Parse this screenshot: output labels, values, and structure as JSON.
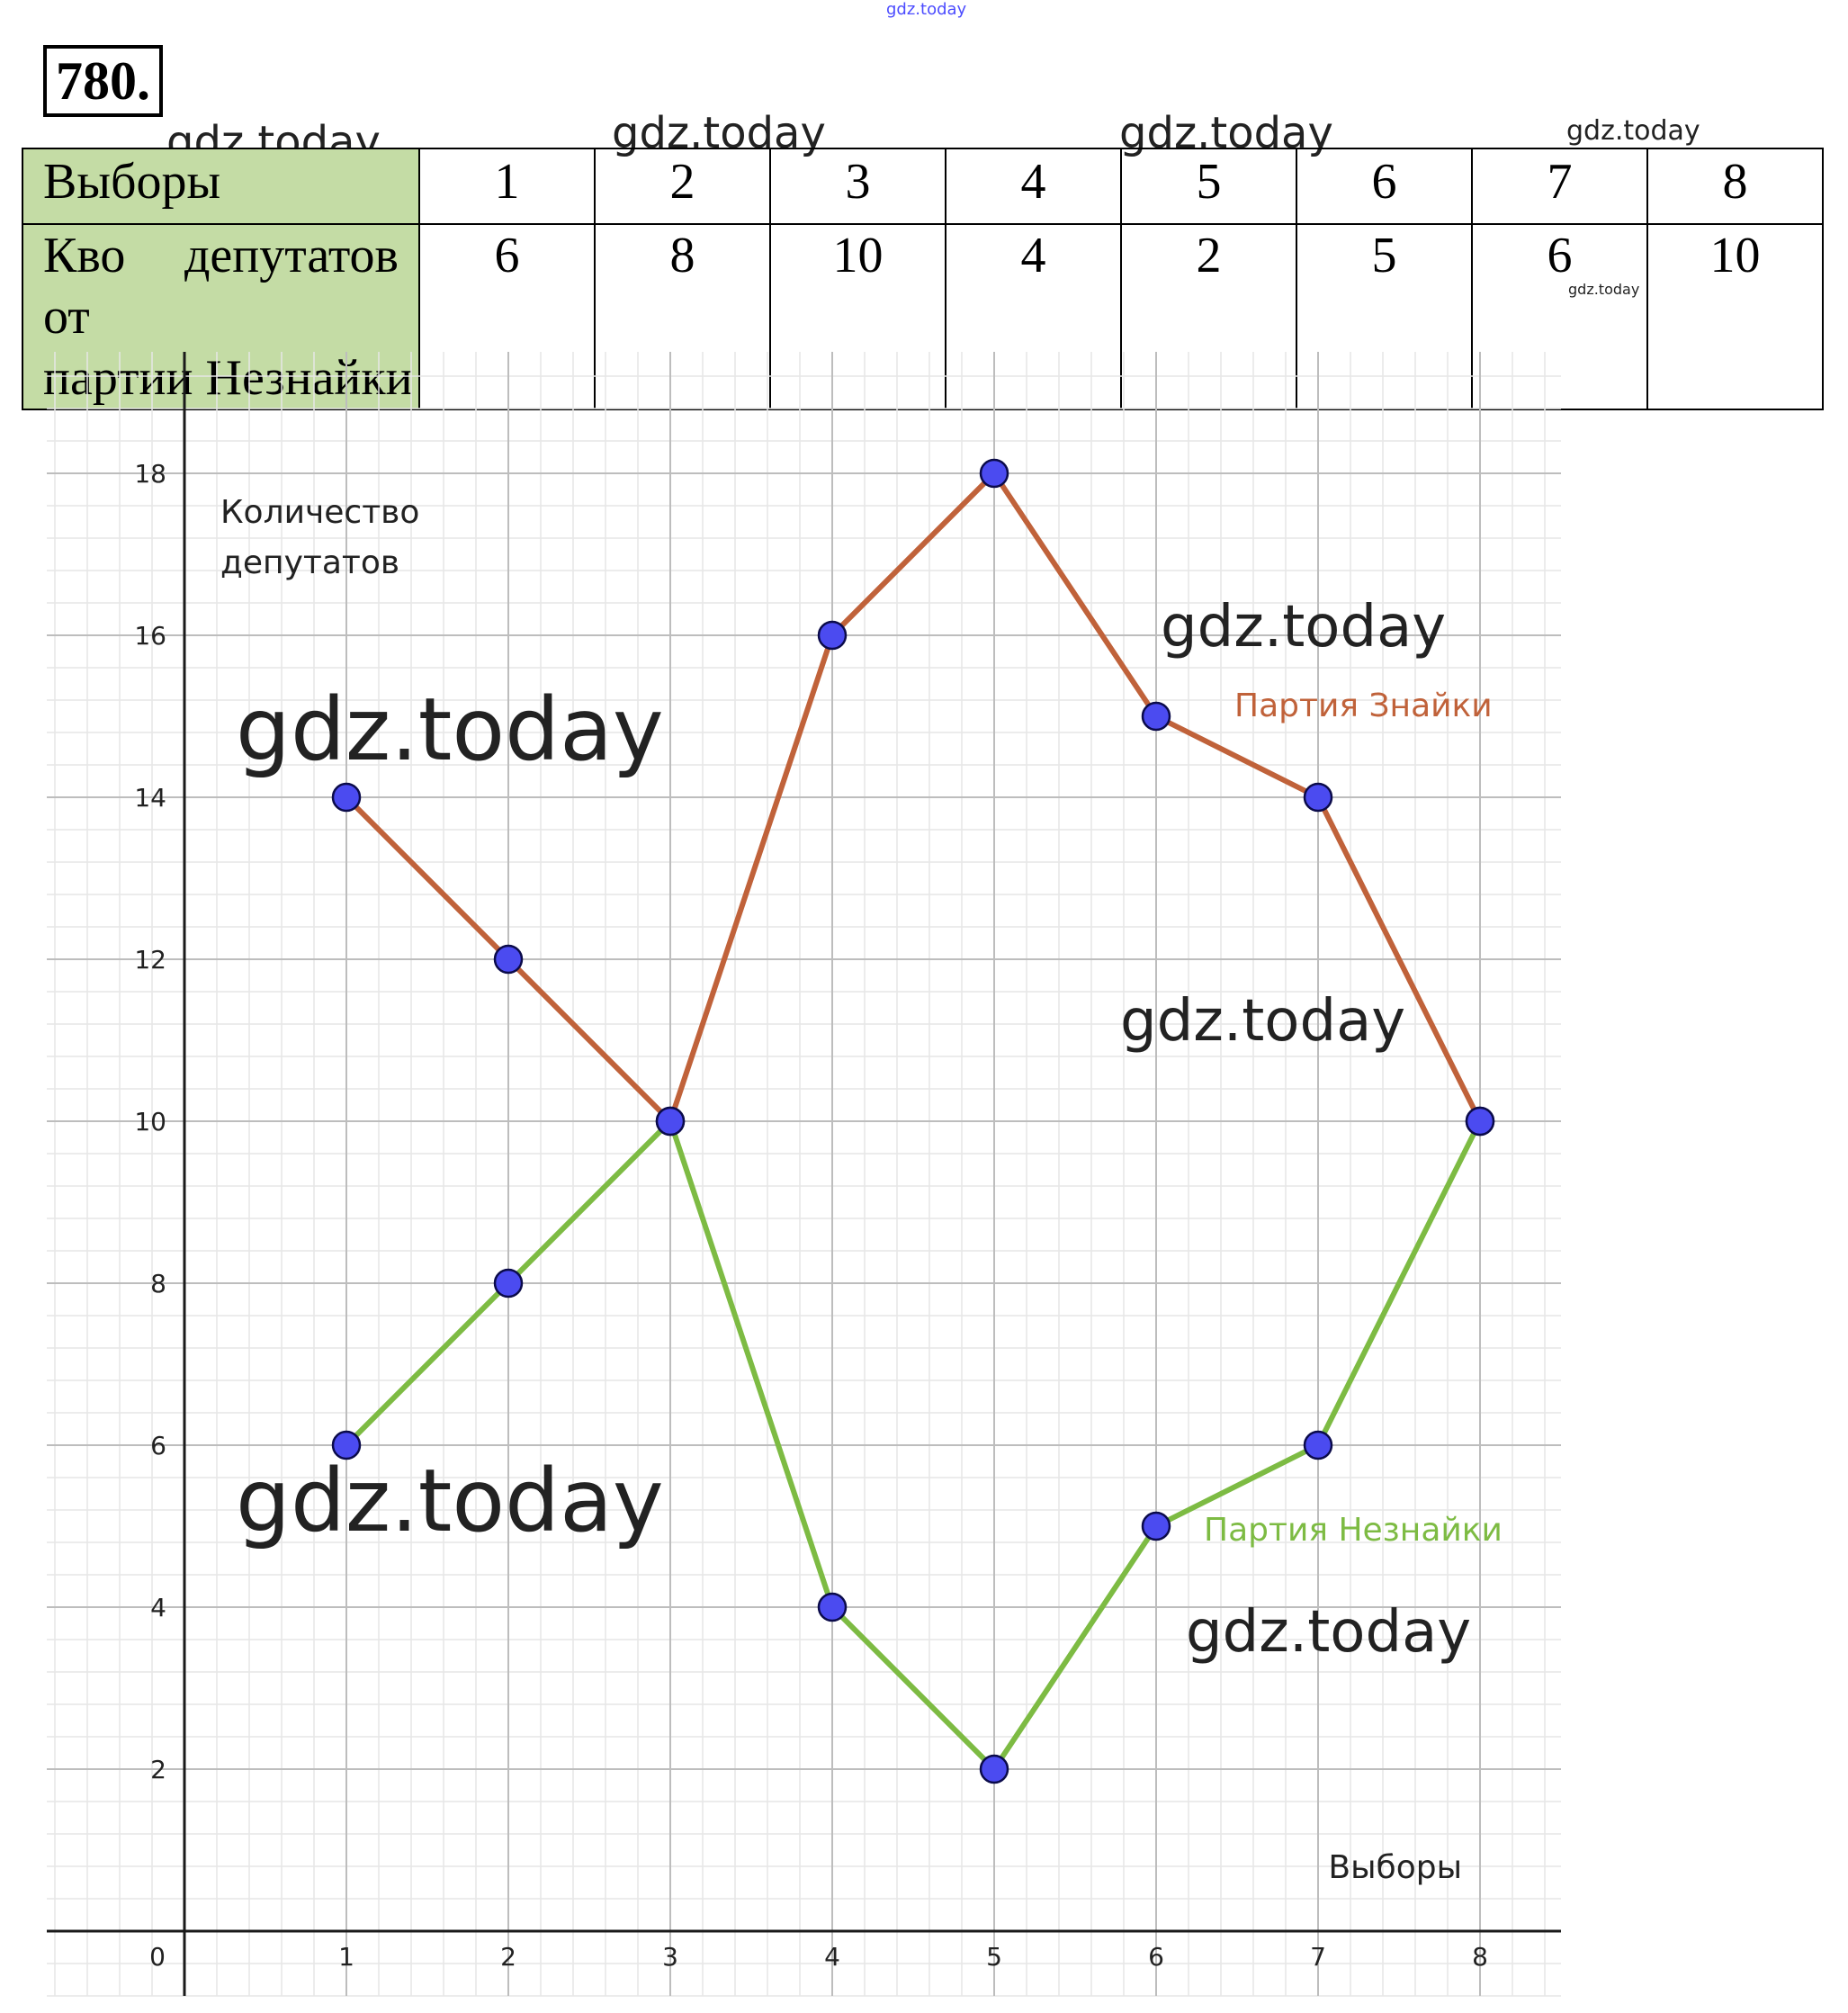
{
  "watermarks": [
    "gdz.today",
    "gdz.today",
    "gdz.today",
    "gdz.today",
    "gdz.today",
    "gdz.today",
    "gdz.today",
    "gdz.today",
    "gdz.today",
    "gdz.today",
    "gdz.today"
  ],
  "problem_number": "780.",
  "table": {
    "row1_header": "Выборы",
    "row1_values": [
      "1",
      "2",
      "3",
      "4",
      "5",
      "6",
      "7",
      "8"
    ],
    "row2_header_line1": "Кво депутатов от",
    "row2_header_line2": "партии Незнайки",
    "row2_values": [
      "6",
      "8",
      "10",
      "4",
      "2",
      "5",
      "6",
      "10"
    ],
    "header_color": "#c4dca5"
  },
  "chart_data": {
    "type": "line",
    "x": [
      1,
      2,
      3,
      4,
      5,
      6,
      7,
      8
    ],
    "series": [
      {
        "name": "Партия Знайки",
        "values": [
          14,
          12,
          10,
          16,
          18,
          15,
          14,
          10
        ],
        "color": "#c0623a"
      },
      {
        "name": "Партия Незнайки",
        "values": [
          6,
          8,
          10,
          4,
          2,
          5,
          6,
          10
        ],
        "color": "#7dbb43"
      }
    ],
    "xlabel": "Выборы",
    "ylabel": "Количество депутатов",
    "ylabel_lines": [
      "Количество",
      "депутатов"
    ],
    "x_ticks": [
      "1",
      "2",
      "3",
      "4",
      "5",
      "6",
      "7",
      "8"
    ],
    "y_ticks": [
      "2",
      "4",
      "6",
      "8",
      "10",
      "12",
      "14",
      "16",
      "18"
    ],
    "origin_label": "0",
    "xlim": [
      -0.85,
      8.5
    ],
    "ylim": [
      -0.8,
      19.5
    ],
    "grid": true,
    "marker_color": "#4b4bf0"
  }
}
